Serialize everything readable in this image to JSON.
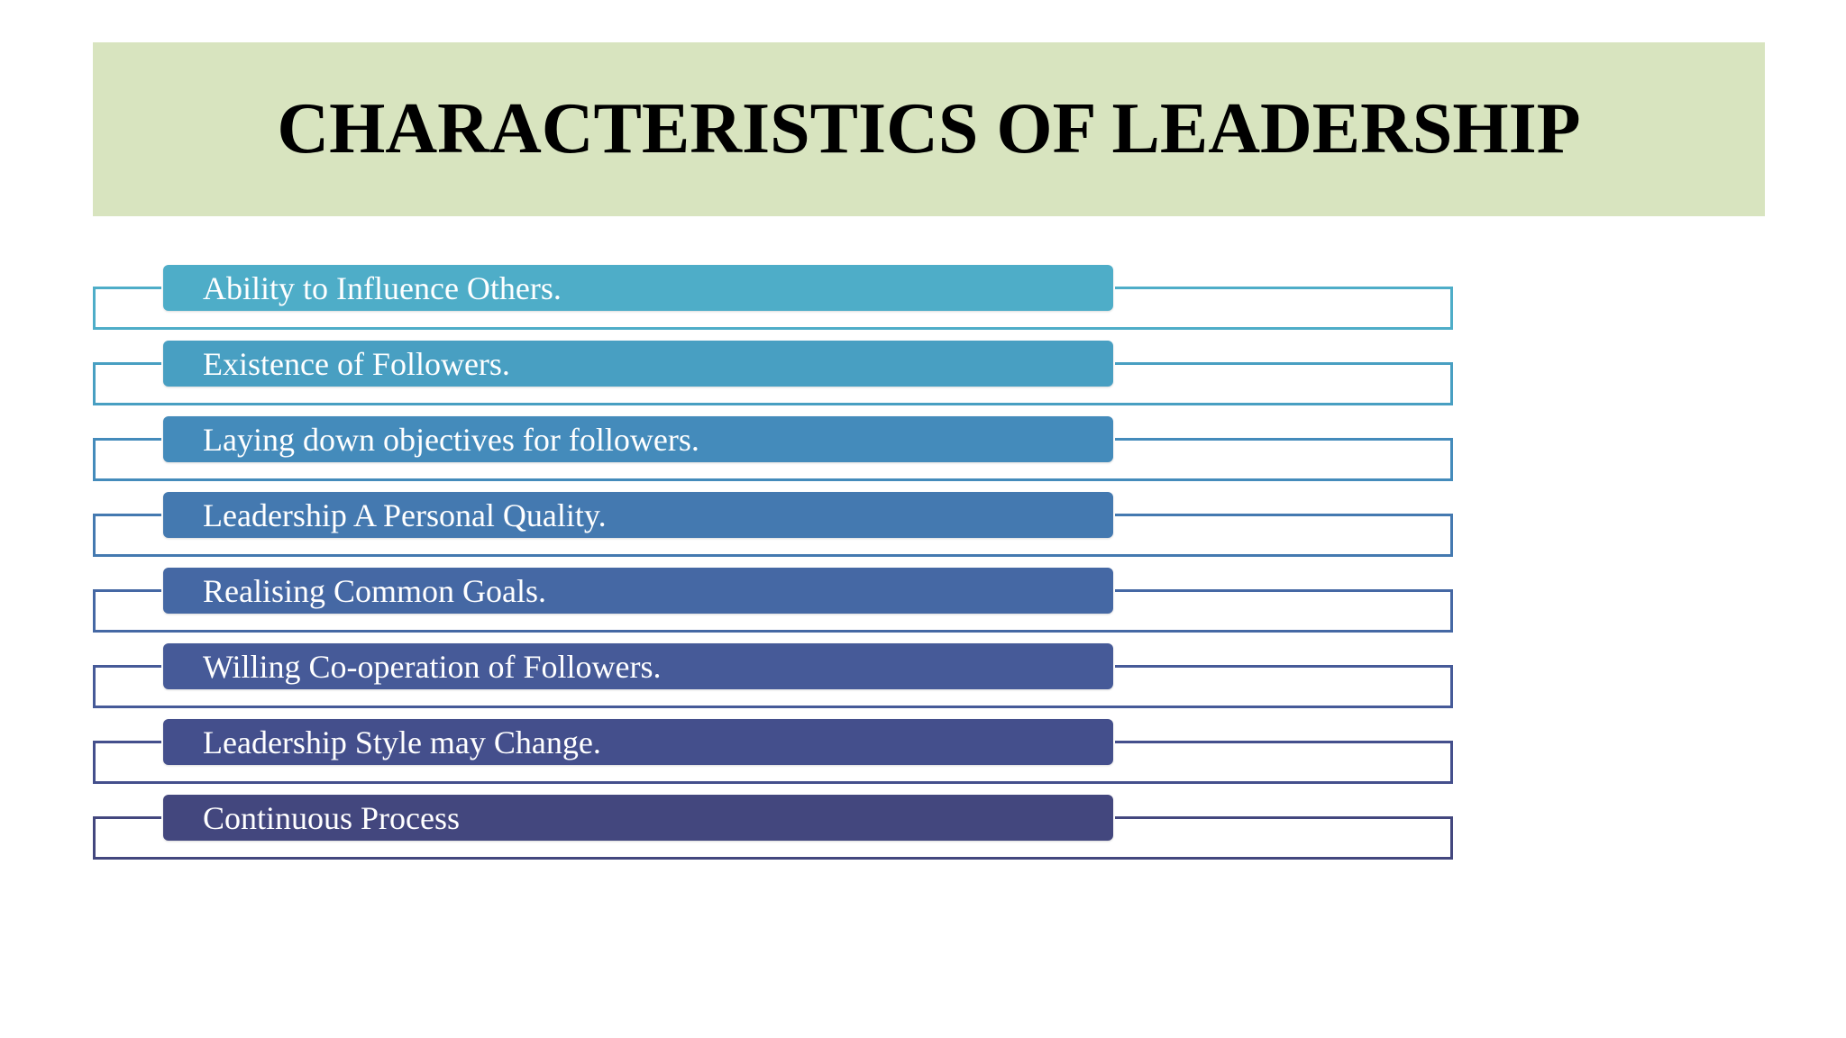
{
  "title": "CHARACTERISTICS OF LEADERSHIP",
  "items": [
    {
      "label": "Ability to Influence Others.",
      "color": "#4eadc8"
    },
    {
      "label": "Existence of Followers.",
      "color": "#489fc2"
    },
    {
      "label": "Laying down objectives for followers.",
      "color": "#448bbb"
    },
    {
      "label": "Leadership A Personal Quality.",
      "color": "#4479b0"
    },
    {
      "label": "Realising Common Goals.",
      "color": "#4568a4"
    },
    {
      "label": "Willing Co-operation of Followers.",
      "color": "#465a98"
    },
    {
      "label": "Leadership Style may Change.",
      "color": "#444f8c"
    },
    {
      "label": "Continuous Process",
      "color": "#43477e"
    }
  ]
}
